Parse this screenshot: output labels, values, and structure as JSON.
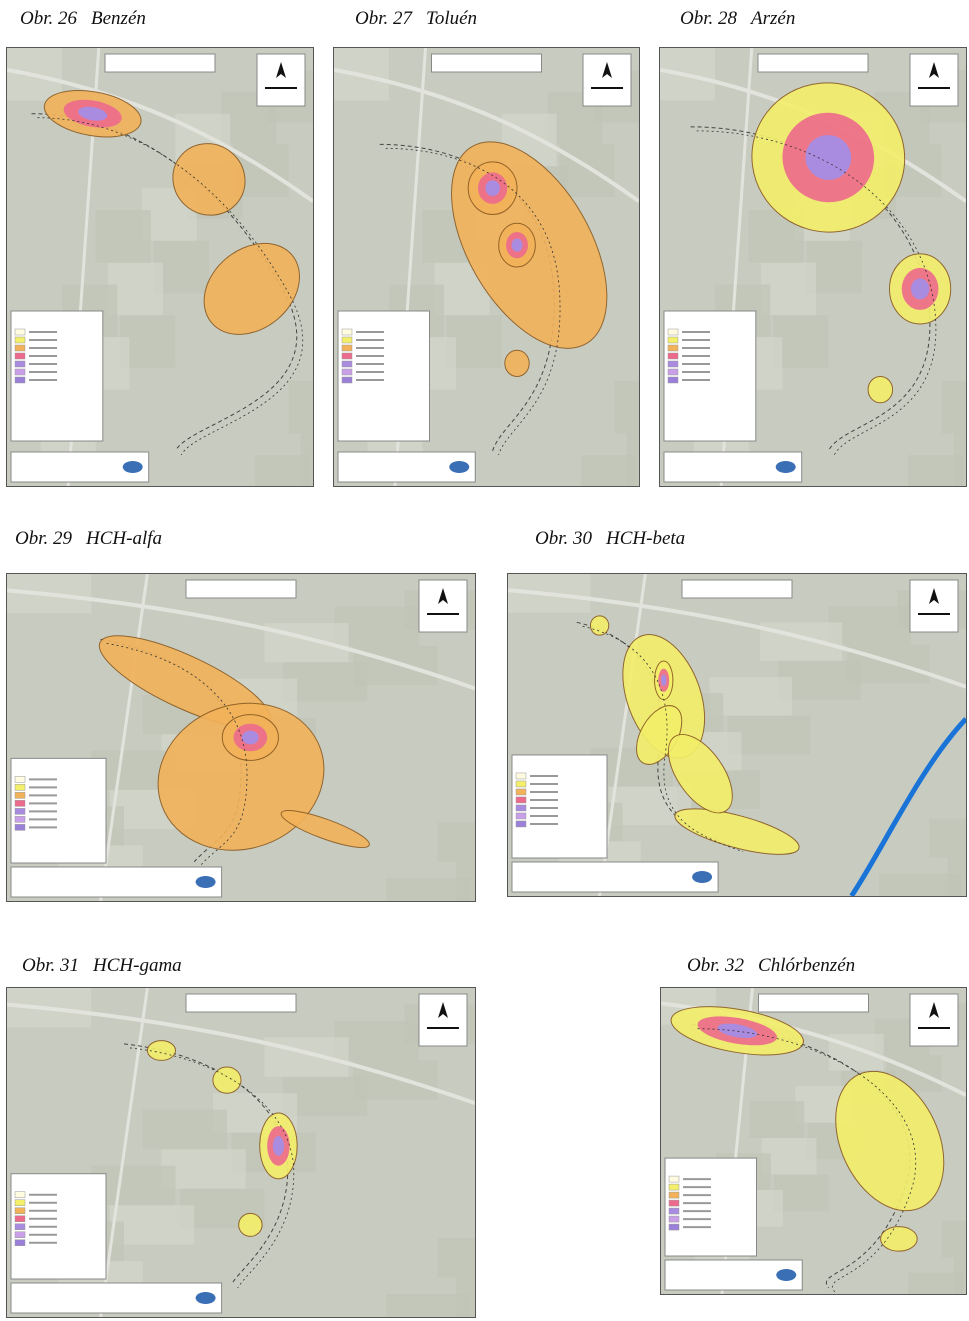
{
  "figures": [
    {
      "number": "Obr. 26",
      "name": "Benzén"
    },
    {
      "number": "Obr. 27",
      "name": "Toluén"
    },
    {
      "number": "Obr. 28",
      "name": "Arzén"
    },
    {
      "number": "Obr. 29",
      "name": "HCH-alfa"
    },
    {
      "number": "Obr. 30",
      "name": "HCH-beta"
    },
    {
      "number": "Obr. 31",
      "name": "HCH-gama"
    },
    {
      "number": "Obr. 32",
      "name": "Chlórbenzén"
    }
  ]
}
